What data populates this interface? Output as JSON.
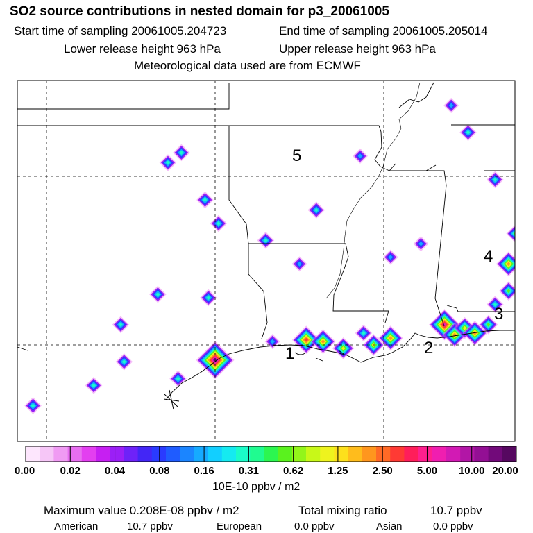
{
  "header": {
    "title": "SO2 source contributions in nested domain for p3_20061005",
    "start_label": "Start time of sampling 20061005.204723",
    "end_label": "End time of sampling 20061005.205014",
    "lower_label": "Lower release height  963 hPa",
    "upper_label": "Upper release height  963 hPa",
    "met_label": "Meteorological data used are from ECMWF"
  },
  "map": {
    "region_labels": [
      "1",
      "2",
      "3",
      "4",
      "5"
    ]
  },
  "chart_data": {
    "type": "heatmap",
    "title": "SO2 source contributions in nested domain for p3_20061005",
    "colorbar": {
      "tick_labels": [
        "0.00",
        "0.02",
        "0.04",
        "0.08",
        "0.16",
        "0.31",
        "0.62",
        "1.25",
        "2.50",
        "5.00",
        "10.00",
        "20.00"
      ],
      "units": "10E-10 ppbv / m2",
      "colors": [
        "#fde6fd",
        "#f6c6f7",
        "#f09bf3",
        "#e86ef0",
        "#e33ff0",
        "#c61ff2",
        "#9b1ff6",
        "#6e22f8",
        "#4326f6",
        "#2a3bff",
        "#1f5cff",
        "#1b85ff",
        "#16aaff",
        "#12cfff",
        "#15eaf0",
        "#1afcc8",
        "#20fb90",
        "#2cf650",
        "#5af21e",
        "#93f51a",
        "#c8f818",
        "#eef31e",
        "#fde01c",
        "#ffbc1c",
        "#ff961e",
        "#ff6a26",
        "#ff3a34",
        "#ff1e5a",
        "#ff1f8e",
        "#f01eb0",
        "#d21ab4",
        "#b216a6",
        "#930f94",
        "#720a7a",
        "#560860"
      ]
    },
    "point_sources": [
      {
        "lon": -95.0,
        "lat": 29.55,
        "value": 20.8
      },
      {
        "lon": -92.3,
        "lat": 30.15,
        "value": 2.5
      },
      {
        "lon": -91.8,
        "lat": 30.1,
        "value": 1.25
      },
      {
        "lon": -91.2,
        "lat": 29.9,
        "value": 0.62
      },
      {
        "lon": -90.3,
        "lat": 30.0,
        "value": 0.62
      },
      {
        "lon": -89.8,
        "lat": 30.2,
        "value": 1.25
      },
      {
        "lon": -88.2,
        "lat": 30.6,
        "value": 5.0
      },
      {
        "lon": -87.9,
        "lat": 30.3,
        "value": 1.25
      },
      {
        "lon": -87.6,
        "lat": 30.5,
        "value": 0.62
      },
      {
        "lon": -87.3,
        "lat": 30.35,
        "value": 1.25
      },
      {
        "lon": -86.9,
        "lat": 30.6,
        "value": 0.31
      },
      {
        "lon": -86.7,
        "lat": 31.2,
        "value": 0.16
      },
      {
        "lon": -86.3,
        "lat": 32.4,
        "value": 1.25
      },
      {
        "lon": -86.0,
        "lat": 33.3,
        "value": 1.25
      },
      {
        "lon": -85.5,
        "lat": 33.2,
        "value": 2.5
      },
      {
        "lon": -86.3,
        "lat": 31.6,
        "value": 0.31
      },
      {
        "lon": -90.6,
        "lat": 30.35,
        "value": 0.16
      },
      {
        "lon": -93.3,
        "lat": 30.1,
        "value": 0.08
      },
      {
        "lon": -95.2,
        "lat": 31.4,
        "value": 0.16
      },
      {
        "lon": -96.7,
        "lat": 31.5,
        "value": 0.16
      },
      {
        "lon": -96.1,
        "lat": 29.0,
        "value": 0.16
      },
      {
        "lon": -97.7,
        "lat": 29.5,
        "value": 0.16
      },
      {
        "lon": -97.8,
        "lat": 30.6,
        "value": 0.16
      },
      {
        "lon": -98.6,
        "lat": 28.8,
        "value": 0.16
      },
      {
        "lon": -100.4,
        "lat": 28.2,
        "value": 0.16
      },
      {
        "lon": -94.9,
        "lat": 33.6,
        "value": 0.16
      },
      {
        "lon": -93.5,
        "lat": 33.1,
        "value": 0.16
      },
      {
        "lon": -92.5,
        "lat": 32.4,
        "value": 0.08
      },
      {
        "lon": -92.0,
        "lat": 34.0,
        "value": 0.16
      },
      {
        "lon": -90.7,
        "lat": 35.6,
        "value": 0.08
      },
      {
        "lon": -88.9,
        "lat": 33.0,
        "value": 0.08
      },
      {
        "lon": -89.8,
        "lat": 32.6,
        "value": 0.08
      },
      {
        "lon": -86.7,
        "lat": 34.9,
        "value": 0.16
      },
      {
        "lon": -87.5,
        "lat": 36.3,
        "value": 0.16
      },
      {
        "lon": -88.0,
        "lat": 37.1,
        "value": 0.08
      },
      {
        "lon": -95.3,
        "lat": 34.3,
        "value": 0.16
      },
      {
        "lon": -96.0,
        "lat": 35.7,
        "value": 0.16
      },
      {
        "lon": -96.4,
        "lat": 35.4,
        "value": 0.16
      }
    ]
  },
  "footer": {
    "max_label": "Maximum value  0.208E-08 ppbv / m2",
    "total_label": "Total mixing ratio",
    "total_value": "10.7 ppbv",
    "american_label": "American",
    "american_value": "10.7 ppbv",
    "european_label": "European",
    "european_value": "0.0 ppbv",
    "asian_label": "Asian",
    "asian_value": "0.0 ppbv"
  }
}
